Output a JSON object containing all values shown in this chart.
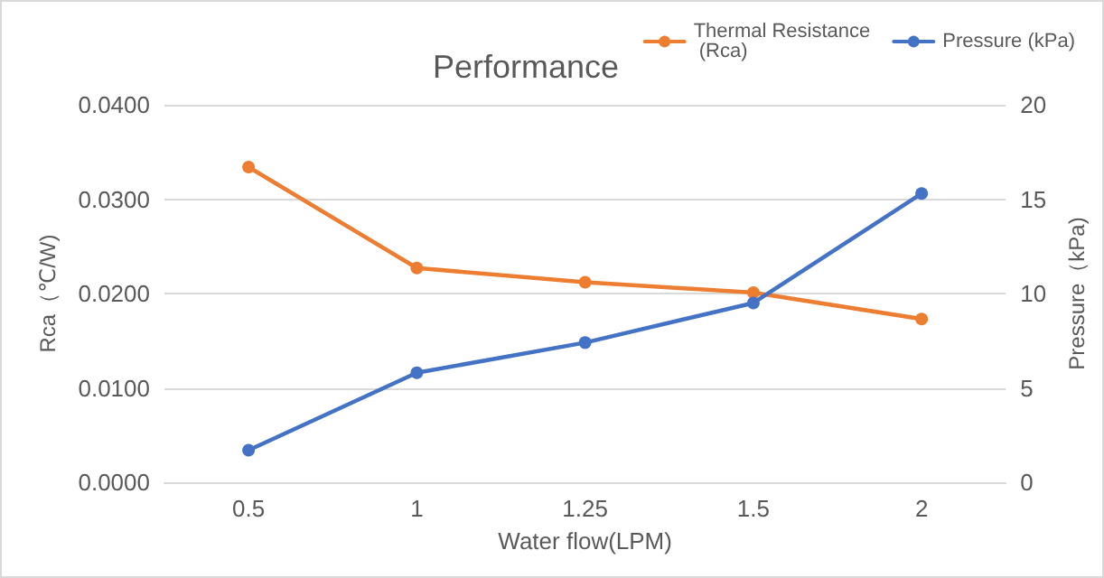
{
  "chart_data": {
    "type": "line",
    "title": "Performance",
    "xlabel": "Water flow(LPM)",
    "ylabel": "Rca（℃/W)",
    "y2label": "Pressure（kPa)",
    "categories": [
      "0.5",
      "1",
      "1.25",
      "1.5",
      "2"
    ],
    "series": [
      {
        "name": "Thermal Resistance (Rca)",
        "color": "#ed7d31",
        "values": [
          0.0334,
          0.0227,
          0.0212,
          0.0201,
          0.0173
        ]
      },
      {
        "name": "Pressure (kPa)",
        "color": "#4472c4",
        "axis": "y2",
        "values": [
          1.7,
          5.8,
          7.4,
          9.5,
          15.3
        ]
      }
    ],
    "ylim": [
      0,
      0.04
    ],
    "yticks": [
      {
        "value": 0,
        "label": "0.0000"
      },
      {
        "value": 0.01,
        "label": "0.0100"
      },
      {
        "value": 0.02,
        "label": "0.0200"
      },
      {
        "value": 0.03,
        "label": "0.0300"
      },
      {
        "value": 0.04,
        "label": "0.0400"
      }
    ],
    "y2lim": [
      0,
      20
    ],
    "y2ticks": [
      0,
      5,
      10,
      15,
      20
    ],
    "grid": "y",
    "legend": "top right",
    "marker": "circle",
    "line_style": "solid"
  }
}
